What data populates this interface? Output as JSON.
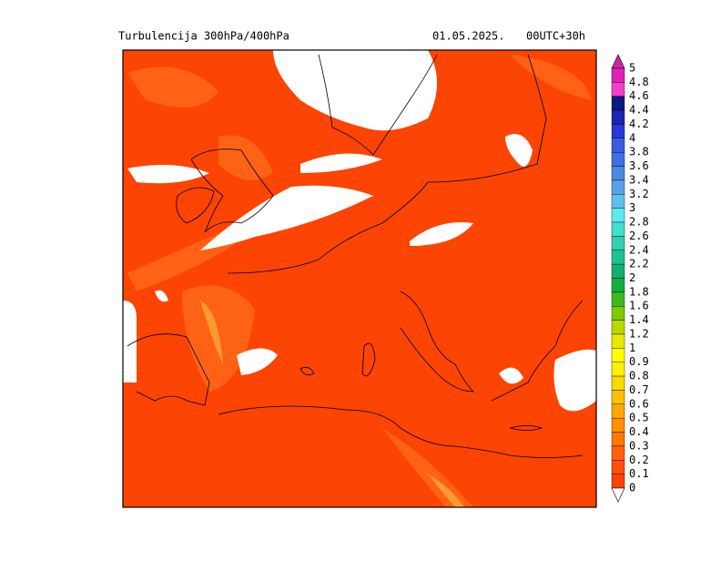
{
  "header": {
    "title": "Turbulencija 300hPa/400hPa",
    "date": "01.05.2025.",
    "run": "00UTC+30h"
  },
  "colorbar": {
    "labels": [
      5,
      4.8,
      4.6,
      4.4,
      4.2,
      4,
      3.8,
      3.6,
      3.4,
      3.2,
      3,
      2.8,
      2.6,
      2.4,
      2.2,
      2,
      1.8,
      1.6,
      1.4,
      1.2,
      1,
      0.9,
      0.8,
      0.7,
      0.6,
      0.5,
      0.4,
      0.3,
      0.2,
      0.1,
      0
    ],
    "colors": [
      "#c8289e",
      "#e020b8",
      "#f040c8",
      "#0a1a80",
      "#1c24b0",
      "#2838d8",
      "#3a5ce0",
      "#4070e0",
      "#4a88e4",
      "#58a0e8",
      "#60c0ec",
      "#60e8f0",
      "#40e0d0",
      "#30d0b0",
      "#20c090",
      "#10b070",
      "#10b040",
      "#40b820",
      "#80c800",
      "#b8d800",
      "#e8e800",
      "#ffff00",
      "#fff000",
      "#ffd800",
      "#ffc000",
      "#ffa800",
      "#ff9000",
      "#ff7800",
      "#ff6010",
      "#ff5008",
      "#fc4404",
      "#ffffff"
    ]
  }
}
